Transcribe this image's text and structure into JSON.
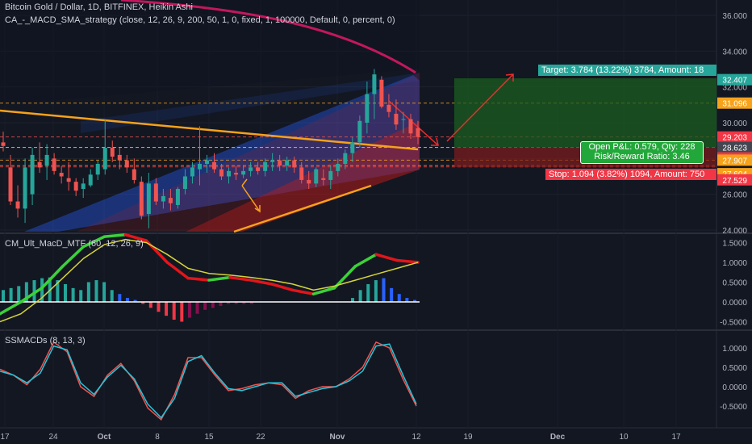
{
  "header": {
    "title": "Bitcoin Gold / Dollar, 1D, BITFINEX, Heikin Ashi",
    "strategy": "CA_-_MACD_SMA_strategy (close, 12, 26, 9, 200, 50, 1, 0, fixed, 1, 100000, Default, 0, percent, 0)"
  },
  "colors": {
    "background": "#131722",
    "bull": "#26a69a",
    "bear": "#ef5350",
    "target": "#26a69a",
    "stop": "#f23645",
    "orange": "#f7a21b",
    "blue_channel": "#2962ff",
    "red_channel": "#b71c1c"
  },
  "boxes": {
    "target": "Target: 3.784 (13.22%) 3784, Amount: 18",
    "stop": "Stop: 1.094 (3.82%) 1094, Amount: 750",
    "open_pnl": "Open P&L: 0.579, Qty: 228",
    "risk_reward": "Risk/Reward Ratio: 3.46"
  },
  "price_tags": [
    "32.407",
    "31.096",
    "29.203",
    "28.623",
    "28.620",
    "27.907",
    "27.604",
    "27.529"
  ],
  "panes": {
    "macd_title": "CM_Ult_MacD_MTF (60, 12, 26, 9)",
    "ssmacd_title": "SSMACDs (8, 13, 3)"
  },
  "chart_data": [
    {
      "type": "candlestick",
      "title": "Bitcoin Gold / Dollar, 1D, BITFINEX, Heikin Ashi",
      "x_ticks": [
        "17",
        "24",
        "Oct",
        "8",
        "15",
        "22",
        "Nov",
        "12",
        "19",
        "Dec",
        "10",
        "17"
      ],
      "y_ticks": [
        36.0,
        34.0,
        32.0,
        30.0,
        28.0,
        26.0,
        24.0
      ],
      "ylim": [
        24,
        36.8
      ],
      "candles": [
        {
          "o": 28.9,
          "h": 29.5,
          "l": 28.4,
          "c": 28.7
        },
        {
          "o": 27.5,
          "h": 28.2,
          "l": 25.4,
          "c": 25.6
        },
        {
          "o": 25.6,
          "h": 26.5,
          "l": 24.7,
          "c": 25.2
        },
        {
          "o": 25.2,
          "h": 28.0,
          "l": 24.4,
          "c": 27.5
        },
        {
          "o": 26.0,
          "h": 28.6,
          "l": 25.4,
          "c": 28.2
        },
        {
          "o": 27.8,
          "h": 28.9,
          "l": 27.2,
          "c": 27.5
        },
        {
          "o": 27.6,
          "h": 28.8,
          "l": 26.8,
          "c": 28.2
        },
        {
          "o": 28.0,
          "h": 28.3,
          "l": 27.1,
          "c": 27.3
        },
        {
          "o": 27.2,
          "h": 27.6,
          "l": 26.6,
          "c": 27.0
        },
        {
          "o": 26.9,
          "h": 27.8,
          "l": 26.2,
          "c": 26.7
        },
        {
          "o": 26.7,
          "h": 26.9,
          "l": 25.9,
          "c": 26.2
        },
        {
          "o": 26.3,
          "h": 26.9,
          "l": 25.8,
          "c": 26.6
        },
        {
          "o": 26.5,
          "h": 27.4,
          "l": 26.4,
          "c": 27.1
        },
        {
          "o": 27.1,
          "h": 27.9,
          "l": 26.8,
          "c": 27.7
        },
        {
          "o": 27.4,
          "h": 30.2,
          "l": 27.1,
          "c": 28.6
        },
        {
          "o": 28.6,
          "h": 29.0,
          "l": 27.8,
          "c": 28.1
        },
        {
          "o": 28.2,
          "h": 28.6,
          "l": 27.4,
          "c": 27.9
        },
        {
          "o": 27.9,
          "h": 28.2,
          "l": 27.2,
          "c": 27.5
        },
        {
          "o": 27.4,
          "h": 28.0,
          "l": 26.6,
          "c": 26.8
        },
        {
          "o": 26.7,
          "h": 27.0,
          "l": 24.6,
          "c": 24.8
        },
        {
          "o": 24.9,
          "h": 27.2,
          "l": 24.1,
          "c": 26.6
        },
        {
          "o": 26.6,
          "h": 26.9,
          "l": 25.4,
          "c": 25.6
        },
        {
          "o": 25.6,
          "h": 26.3,
          "l": 25.2,
          "c": 25.9
        },
        {
          "o": 25.8,
          "h": 26.3,
          "l": 25.1,
          "c": 25.5
        },
        {
          "o": 25.4,
          "h": 26.4,
          "l": 25.2,
          "c": 26.3
        },
        {
          "o": 26.3,
          "h": 27.4,
          "l": 26.0,
          "c": 27.0
        },
        {
          "o": 27.0,
          "h": 27.8,
          "l": 26.6,
          "c": 27.5
        },
        {
          "o": 27.4,
          "h": 29.8,
          "l": 26.5,
          "c": 27.7
        },
        {
          "o": 27.7,
          "h": 28.2,
          "l": 27.2,
          "c": 27.9
        },
        {
          "o": 27.8,
          "h": 28.3,
          "l": 27.2,
          "c": 27.4
        },
        {
          "o": 27.4,
          "h": 27.7,
          "l": 26.8,
          "c": 27.0
        },
        {
          "o": 27.0,
          "h": 27.5,
          "l": 26.6,
          "c": 27.3
        },
        {
          "o": 27.2,
          "h": 27.6,
          "l": 26.8,
          "c": 27.1
        },
        {
          "o": 27.1,
          "h": 27.6,
          "l": 26.9,
          "c": 27.3
        },
        {
          "o": 27.3,
          "h": 27.8,
          "l": 27.0,
          "c": 27.5
        },
        {
          "o": 27.5,
          "h": 27.8,
          "l": 27.1,
          "c": 27.3
        },
        {
          "o": 27.3,
          "h": 28.0,
          "l": 27.0,
          "c": 27.8
        },
        {
          "o": 27.8,
          "h": 28.3,
          "l": 27.3,
          "c": 27.9
        },
        {
          "o": 27.9,
          "h": 28.2,
          "l": 27.3,
          "c": 27.6
        },
        {
          "o": 27.6,
          "h": 28.1,
          "l": 27.3,
          "c": 27.9
        },
        {
          "o": 27.9,
          "h": 28.1,
          "l": 27.2,
          "c": 27.5
        },
        {
          "o": 27.5,
          "h": 27.8,
          "l": 26.6,
          "c": 26.8
        },
        {
          "o": 26.8,
          "h": 27.3,
          "l": 26.3,
          "c": 26.6
        },
        {
          "o": 26.6,
          "h": 27.5,
          "l": 26.4,
          "c": 27.4
        },
        {
          "o": 26.9,
          "h": 27.4,
          "l": 26.5,
          "c": 26.8
        },
        {
          "o": 26.8,
          "h": 27.6,
          "l": 26.3,
          "c": 27.3
        },
        {
          "o": 27.3,
          "h": 28.0,
          "l": 27.0,
          "c": 27.7
        },
        {
          "o": 27.7,
          "h": 28.5,
          "l": 27.4,
          "c": 28.3
        },
        {
          "o": 28.3,
          "h": 29.2,
          "l": 27.8,
          "c": 28.9
        },
        {
          "o": 28.9,
          "h": 30.4,
          "l": 28.6,
          "c": 30.1
        },
        {
          "o": 30.0,
          "h": 32.3,
          "l": 29.4,
          "c": 31.6
        },
        {
          "o": 31.6,
          "h": 33.0,
          "l": 30.2,
          "c": 32.7
        },
        {
          "o": 32.4,
          "h": 32.6,
          "l": 30.8,
          "c": 30.9
        },
        {
          "o": 31.0,
          "h": 31.6,
          "l": 30.3,
          "c": 30.6
        },
        {
          "o": 30.5,
          "h": 31.3,
          "l": 29.6,
          "c": 29.9
        },
        {
          "o": 30.2,
          "h": 30.6,
          "l": 29.4,
          "c": 30.2
        },
        {
          "o": 30.2,
          "h": 30.5,
          "l": 29.1,
          "c": 29.4
        },
        {
          "o": 29.7,
          "h": 30.1,
          "l": 28.8,
          "c": 29.2
        }
      ],
      "price_lines": [
        31.096,
        29.203,
        28.623,
        28.62,
        27.907,
        27.604,
        27.529
      ],
      "bands": {
        "blue_upper": [
          [
            0.05,
            29.6
          ],
          [
            0.55,
            33.2
          ]
        ],
        "blue_lower": [
          [
            0.05,
            24.2
          ],
          [
            0.55,
            28.2
          ]
        ]
      },
      "trendlines": {
        "resistance": [
          [
            0.0,
            31.0
          ],
          [
            0.555,
            28.7
          ]
        ],
        "support": [
          [
            0.31,
            24.0
          ],
          [
            0.495,
            27.3
          ]
        ]
      }
    },
    {
      "type": "line",
      "title": "CM_Ult_MacD_MTF (60, 12, 26, 9)",
      "ylim": [
        -0.7,
        2.0
      ],
      "y_ticks": [
        1.5,
        1.0,
        0.5,
        0.0,
        -0.5
      ],
      "series": [
        {
          "values": [
            -0.3,
            0.0,
            0.35,
            0.9,
            1.4,
            1.65,
            1.7,
            1.55,
            1.0,
            0.6,
            0.55,
            0.62,
            0.55,
            0.45,
            0.3,
            0.2,
            0.35,
            0.9,
            1.2,
            1.05,
            1.0
          ]
        },
        {
          "values": [
            -0.5,
            -0.3,
            0.1,
            0.6,
            1.1,
            1.45,
            1.58,
            1.5,
            1.2,
            0.85,
            0.72,
            0.68,
            0.62,
            0.55,
            0.45,
            0.3,
            0.4,
            0.55,
            0.7,
            0.85,
            1.0
          ]
        }
      ],
      "histogram": [
        0.3,
        0.35,
        0.4,
        0.5,
        0.55,
        0.6,
        0.62,
        0.55,
        0.45,
        0.35,
        0.3,
        0.5,
        0.55,
        0.5,
        0.3,
        0.2,
        0.1,
        0.05,
        -0.05,
        -0.15,
        -0.25,
        -0.35,
        -0.45,
        -0.5,
        -0.4,
        -0.3,
        -0.2,
        -0.15,
        -0.1,
        -0.05,
        -0.05,
        -0.05,
        -0.05,
        0,
        0,
        0,
        0,
        0,
        0,
        0,
        0,
        0,
        0,
        0,
        0,
        0.1,
        0.3,
        0.45,
        0.55,
        0.6,
        0.35,
        0.2,
        0.1,
        0.05
      ]
    },
    {
      "type": "line",
      "title": "SSMACDs (8, 13, 3)",
      "ylim": [
        -0.7,
        1.45
      ],
      "y_ticks": [
        1.0,
        0.5,
        0.0,
        -0.5
      ],
      "series": [
        {
          "values": [
            0.45,
            0.3,
            0.05,
            0.45,
            1.15,
            0.9,
            0.0,
            -0.25,
            0.3,
            0.6,
            0.15,
            -0.55,
            -0.85,
            -0.2,
            0.75,
            0.75,
            0.3,
            -0.1,
            -0.05,
            0.05,
            0.1,
            0.05,
            -0.3,
            -0.1,
            0.0,
            0.0,
            0.2,
            0.5,
            1.15,
            1.0,
            0.2,
            -0.5
          ]
        },
        {
          "values": [
            0.4,
            0.3,
            0.1,
            0.35,
            1.05,
            0.95,
            0.1,
            -0.2,
            0.25,
            0.55,
            0.2,
            -0.45,
            -0.8,
            -0.3,
            0.65,
            0.8,
            0.35,
            -0.05,
            -0.1,
            0.0,
            0.1,
            0.1,
            -0.25,
            -0.15,
            -0.05,
            0.0,
            0.15,
            0.4,
            1.05,
            1.1,
            0.3,
            -0.45
          ]
        }
      ]
    }
  ]
}
